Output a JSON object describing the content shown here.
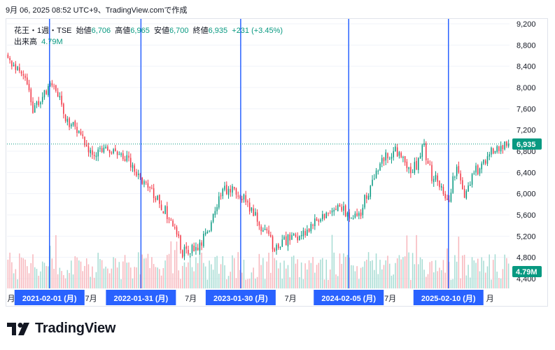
{
  "header": {
    "snapshot_text": "9月 06, 2025 08:52 UTC+9、TradingView.comで作成"
  },
  "legend": {
    "symbol": "花王・1週・TSE",
    "open_label": "始値",
    "open": "6,706",
    "high_label": "高値",
    "high": "6,965",
    "low_label": "安値",
    "low": "6,700",
    "close_label": "終値",
    "close": "6,935",
    "change": "+231 (+3.45%)",
    "volume_label": "出来高",
    "volume": "4.79M"
  },
  "price_axis": {
    "ticks": [
      "9,200",
      "8,800",
      "8,400",
      "8,000",
      "7,600",
      "7,200",
      "6,800",
      "6,400",
      "6,000",
      "5,600",
      "5,200",
      "4,800",
      "4,400"
    ],
    "last_price_badge": "6,935",
    "volume_badge": "4.79M"
  },
  "time_axis": {
    "month_labels": [
      "月",
      "7月",
      "7月",
      "7月",
      "7月",
      "月"
    ],
    "date_badges": [
      "2021-02-01 (月)",
      "2022-01-31 (月)",
      "2023-01-30 (月)",
      "2024-02-05 (月)",
      "2025-02-10 (月)"
    ]
  },
  "footer": {
    "brand": "TradingView"
  },
  "colors": {
    "up": "#089981",
    "down": "#f23645",
    "up_volume": "#a6dcd3",
    "down_volume": "#f7b6bc",
    "vertical_lines": "#2962ff",
    "date_badge": "#2962ff",
    "last_price": "#089981"
  },
  "chart_data": {
    "type": "candlestick",
    "interval": "1 week",
    "y_range": [
      4200,
      9300
    ],
    "y_ticks": [
      9200,
      8800,
      8400,
      8000,
      7600,
      7200,
      6800,
      6400,
      6000,
      5600,
      5200,
      4800,
      4400
    ],
    "last_close": 6935,
    "year_markers": [
      "2021-02-01",
      "2022-01-31",
      "2023-01-30",
      "2024-02-05",
      "2025-02-10"
    ],
    "price_path": [
      [
        "2020-09",
        8500
      ],
      [
        "2020-11",
        8300
      ],
      [
        "2020-12",
        7600
      ],
      [
        "2021-02",
        8000
      ],
      [
        "2021-03",
        7900
      ],
      [
        "2021-04",
        7400
      ],
      [
        "2021-06",
        7100
      ],
      [
        "2021-07",
        6750
      ],
      [
        "2021-09",
        6850
      ],
      [
        "2021-11",
        6700
      ],
      [
        "2022-01",
        6300
      ],
      [
        "2022-03",
        5900
      ],
      [
        "2022-05",
        5400
      ],
      [
        "2022-06",
        4900
      ],
      [
        "2022-08",
        4950
      ],
      [
        "2022-09",
        5300
      ],
      [
        "2022-11",
        6100
      ],
      [
        "2023-01",
        6000
      ],
      [
        "2023-03",
        5500
      ],
      [
        "2023-05",
        5000
      ],
      [
        "2023-07",
        5150
      ],
      [
        "2023-09",
        5300
      ],
      [
        "2023-11",
        5600
      ],
      [
        "2024-01",
        5700
      ],
      [
        "2024-03",
        5500
      ],
      [
        "2024-04",
        5900
      ],
      [
        "2024-06",
        6700
      ],
      [
        "2024-08",
        6800
      ],
      [
        "2024-09",
        6400
      ],
      [
        "2024-10",
        6500
      ],
      [
        "2024-11",
        6900
      ],
      [
        "2024-12",
        6300
      ],
      [
        "2025-01",
        6200
      ],
      [
        "2025-02",
        5900
      ],
      [
        "2025-03",
        6500
      ],
      [
        "2025-04",
        5900
      ],
      [
        "2025-05",
        6400
      ],
      [
        "2025-06",
        6500
      ],
      [
        "2025-07",
        6800
      ],
      [
        "2025-09",
        6935
      ]
    ]
  }
}
